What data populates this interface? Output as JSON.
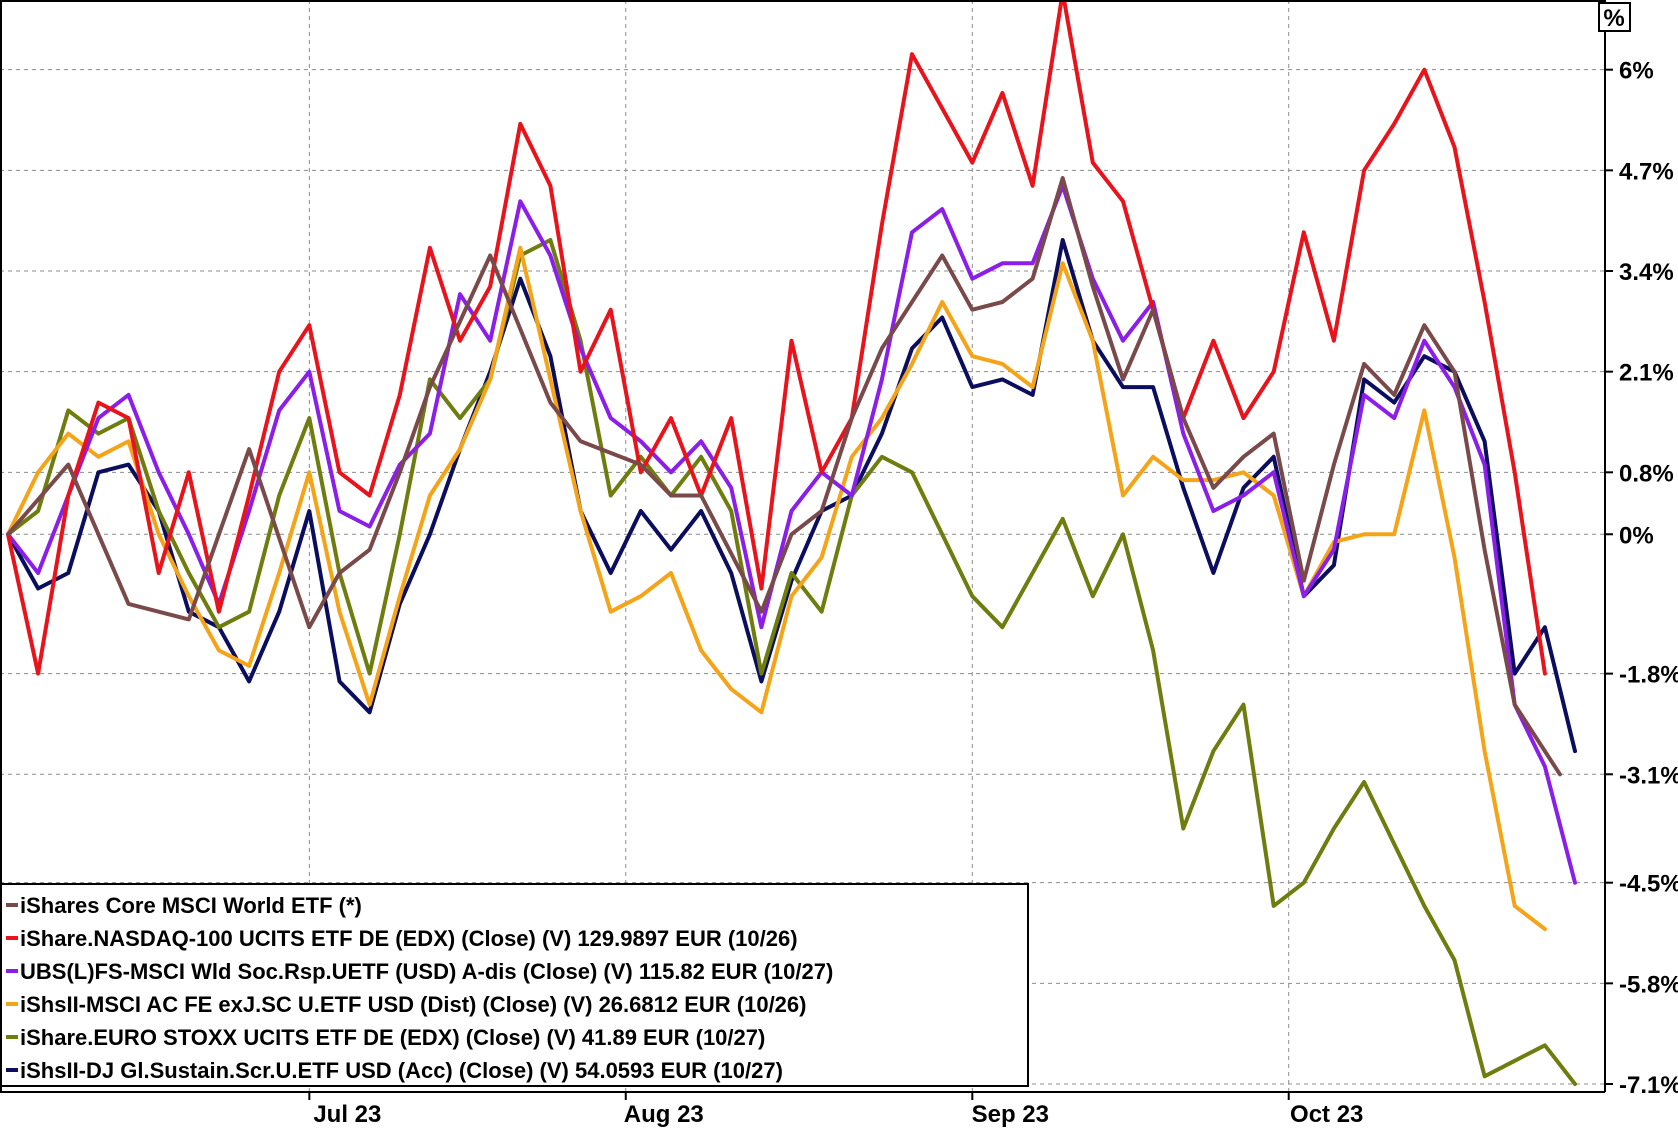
{
  "chart_data": {
    "type": "line",
    "unit_label": "%",
    "y_ticks": [
      6.0,
      4.7,
      3.4,
      2.1,
      0.8,
      0.0,
      -1.8,
      -3.1,
      -4.5,
      -5.8,
      -7.1
    ],
    "y_tick_labels": [
      "6%",
      "4.7%",
      "3.4%",
      "2.1%",
      "0.8%",
      "0%",
      "-1.8%",
      "-3.1%",
      "-4.5%",
      "-5.8%",
      "-7.1%"
    ],
    "ylim": [
      -7.1,
      6.9
    ],
    "x_ticks": [
      20,
      41,
      64,
      85
    ],
    "x_tick_labels": [
      "Jul 23",
      "Aug 23",
      "Sep 23",
      "Oct 23"
    ],
    "xlim": [
      0,
      104
    ],
    "grid": true,
    "legend_position": "bottom-left",
    "colors": {
      "iShares Core MSCI World ETF (*)": "#7a4a4a",
      "iShare.NASDAQ-100 UCITS ETF DE (EDX) (Close) (V) 129.9897 EUR (10/26)": "#e8131b",
      "UBS(L)FS-MSCI Wld Soc.Rsp.UETF (USD) A-dis (Close) (V) 115.82 EUR (10/27)": "#8b1ee8",
      "iShsII-MSCI AC FE exJ.SC U.ETF USD (Dist) (Close) (V) 26.6812 EUR (10/26)": "#f5a418",
      "iShare.EURO STOXX UCITS ETF DE (EDX) (Close) (V) 41.89 EUR (10/27)": "#6e7d0e",
      "iShsII-DJ Gl.Sustain.Scr.U.ETF USD (Acc) (Close) (V) 54.0593 EUR (10/27)": "#0b0e5e"
    },
    "series": [
      {
        "name": "iShares Core MSCI World ETF (*)",
        "x": [
          0,
          4,
          8,
          12,
          16,
          20,
          22,
          24,
          26,
          28,
          32,
          36,
          38,
          42,
          44,
          46,
          50,
          52,
          54,
          56,
          58,
          62,
          64,
          66,
          68,
          70,
          72,
          74,
          76,
          78,
          80,
          82,
          84,
          86,
          88,
          90,
          92,
          94,
          96,
          98,
          100,
          103
        ],
        "values": [
          0.0,
          0.9,
          -0.9,
          -1.1,
          1.1,
          -1.2,
          -0.5,
          -0.2,
          0.8,
          1.9,
          3.6,
          1.7,
          1.2,
          0.9,
          0.5,
          0.5,
          -1.0,
          0.0,
          0.3,
          1.5,
          2.4,
          3.6,
          2.9,
          3.0,
          3.3,
          4.6,
          3.2,
          2.0,
          2.9,
          1.5,
          0.6,
          1.0,
          1.3,
          -0.6,
          0.9,
          2.2,
          1.8,
          2.7,
          2.1,
          -0.2,
          -2.2,
          -3.1
        ]
      },
      {
        "name": "iShare.NASDAQ-100 UCITS ETF DE (EDX) (Close) (V) 129.9897 EUR (10/26)",
        "x": [
          0,
          2,
          4,
          6,
          8,
          10,
          12,
          14,
          16,
          18,
          20,
          22,
          24,
          26,
          28,
          30,
          32,
          34,
          36,
          38,
          40,
          42,
          44,
          46,
          48,
          50,
          52,
          54,
          56,
          58,
          60,
          62,
          64,
          66,
          68,
          70,
          72,
          74,
          76,
          78,
          80,
          82,
          84,
          86,
          88,
          90,
          92,
          94,
          96,
          98,
          100,
          102
        ],
        "values": [
          0.0,
          -1.8,
          0.5,
          1.7,
          1.5,
          -0.5,
          0.8,
          -1.0,
          0.5,
          2.1,
          2.7,
          0.8,
          0.5,
          1.8,
          3.7,
          2.5,
          3.2,
          5.3,
          4.5,
          2.1,
          2.9,
          0.8,
          1.5,
          0.5,
          1.5,
          -0.7,
          2.5,
          0.8,
          1.5,
          4.0,
          6.2,
          5.5,
          4.8,
          5.7,
          4.5,
          7.0,
          4.8,
          4.3,
          2.9,
          1.5,
          2.5,
          1.5,
          2.1,
          3.9,
          2.5,
          4.7,
          5.3,
          6.0,
          5.0,
          3.0,
          0.8,
          -1.8
        ]
      },
      {
        "name": "UBS(L)FS-MSCI Wld Soc.Rsp.UETF (USD) A-dis (Close) (V) 115.82 EUR (10/27)",
        "x": [
          0,
          2,
          4,
          6,
          8,
          10,
          12,
          14,
          16,
          18,
          20,
          22,
          24,
          26,
          28,
          30,
          32,
          34,
          36,
          38,
          40,
          42,
          44,
          46,
          48,
          50,
          52,
          54,
          56,
          58,
          60,
          62,
          64,
          66,
          68,
          70,
          72,
          74,
          76,
          78,
          80,
          82,
          84,
          86,
          88,
          90,
          92,
          94,
          96,
          98,
          100,
          102,
          104
        ],
        "values": [
          0.0,
          -0.5,
          0.5,
          1.5,
          1.8,
          0.8,
          0.0,
          -0.9,
          0.3,
          1.6,
          2.1,
          0.3,
          0.1,
          0.9,
          1.3,
          3.1,
          2.5,
          4.3,
          3.6,
          2.4,
          1.5,
          1.2,
          0.8,
          1.2,
          0.6,
          -1.2,
          0.3,
          0.8,
          0.5,
          2.0,
          3.9,
          4.2,
          3.3,
          3.5,
          3.5,
          4.5,
          3.3,
          2.5,
          3.0,
          1.3,
          0.3,
          0.5,
          0.8,
          -0.8,
          -0.2,
          1.8,
          1.5,
          2.5,
          1.9,
          0.9,
          -2.2,
          -3.0,
          -4.5
        ]
      },
      {
        "name": "iShsII-MSCI AC FE exJ.SC U.ETF USD (Dist) (Close) (V) 26.6812 EUR (10/26)",
        "x": [
          0,
          2,
          4,
          6,
          8,
          10,
          12,
          14,
          16,
          18,
          20,
          22,
          24,
          26,
          28,
          30,
          32,
          34,
          36,
          38,
          40,
          42,
          44,
          46,
          48,
          50,
          52,
          54,
          56,
          58,
          60,
          62,
          64,
          66,
          68,
          70,
          72,
          74,
          76,
          78,
          80,
          82,
          84,
          86,
          88,
          90,
          92,
          94,
          96,
          98,
          100,
          102
        ],
        "values": [
          0.0,
          0.8,
          1.3,
          1.0,
          1.2,
          0.0,
          -0.8,
          -1.5,
          -1.7,
          -0.5,
          0.8,
          -1.0,
          -2.2,
          -0.8,
          0.5,
          1.1,
          2.0,
          3.7,
          2.0,
          0.3,
          -1.0,
          -0.8,
          -0.5,
          -1.5,
          -2.0,
          -2.3,
          -0.8,
          -0.3,
          1.0,
          1.5,
          2.2,
          3.0,
          2.3,
          2.2,
          1.9,
          3.5,
          2.5,
          0.5,
          1.0,
          0.7,
          0.7,
          0.8,
          0.5,
          -0.8,
          -0.1,
          0.0,
          0.0,
          1.6,
          -0.3,
          -2.8,
          -4.8,
          -5.1
        ]
      },
      {
        "name": "iShare.EURO STOXX UCITS ETF DE (EDX) (Close) (V) 41.89 EUR (10/27)",
        "x": [
          0,
          2,
          4,
          6,
          8,
          10,
          12,
          14,
          16,
          18,
          20,
          22,
          24,
          26,
          28,
          30,
          32,
          34,
          36,
          38,
          40,
          42,
          44,
          46,
          48,
          50,
          52,
          54,
          56,
          58,
          60,
          62,
          64,
          66,
          68,
          70,
          72,
          74,
          76,
          78,
          80,
          82,
          84,
          86,
          88,
          90,
          92,
          94,
          96,
          98,
          100,
          102,
          104
        ],
        "values": [
          0.0,
          0.3,
          1.6,
          1.3,
          1.5,
          0.3,
          -0.5,
          -1.2,
          -1.0,
          0.5,
          1.5,
          -0.5,
          -1.8,
          0.0,
          2.0,
          1.5,
          2.0,
          3.6,
          3.8,
          2.5,
          0.5,
          1.0,
          0.5,
          1.0,
          0.3,
          -1.8,
          -0.5,
          -1.0,
          0.5,
          1.0,
          0.8,
          0.0,
          -0.8,
          -1.2,
          -0.5,
          0.2,
          -0.8,
          0.0,
          -1.5,
          -3.8,
          -2.8,
          -2.2,
          -4.8,
          -4.5,
          -3.8,
          -3.2,
          -4.0,
          -4.8,
          -5.5,
          -7.0,
          -6.8,
          -6.6,
          -7.1
        ]
      },
      {
        "name": "iShsII-DJ Gl.Sustain.Scr.U.ETF USD (Acc) (Close) (V) 54.0593 EUR (10/27)",
        "x": [
          0,
          2,
          4,
          6,
          8,
          10,
          12,
          14,
          16,
          18,
          20,
          22,
          24,
          26,
          28,
          30,
          32,
          34,
          36,
          38,
          40,
          42,
          44,
          46,
          48,
          50,
          52,
          54,
          56,
          58,
          60,
          62,
          64,
          66,
          68,
          70,
          72,
          74,
          76,
          78,
          80,
          82,
          84,
          86,
          88,
          90,
          92,
          94,
          96,
          98,
          100,
          102,
          104
        ],
        "values": [
          0.0,
          -0.7,
          -0.5,
          0.8,
          0.9,
          0.3,
          -1.0,
          -1.2,
          -1.9,
          -1.0,
          0.3,
          -1.9,
          -2.3,
          -0.9,
          0.0,
          1.1,
          2.1,
          3.3,
          2.3,
          0.3,
          -0.5,
          0.3,
          -0.2,
          0.3,
          -0.5,
          -1.9,
          -0.6,
          0.3,
          0.5,
          1.3,
          2.4,
          2.8,
          1.9,
          2.0,
          1.8,
          3.8,
          2.5,
          1.9,
          1.9,
          0.6,
          -0.5,
          0.6,
          1.0,
          -0.8,
          -0.4,
          2.0,
          1.7,
          2.3,
          2.1,
          1.2,
          -1.8,
          -1.2,
          -2.8
        ]
      }
    ]
  }
}
